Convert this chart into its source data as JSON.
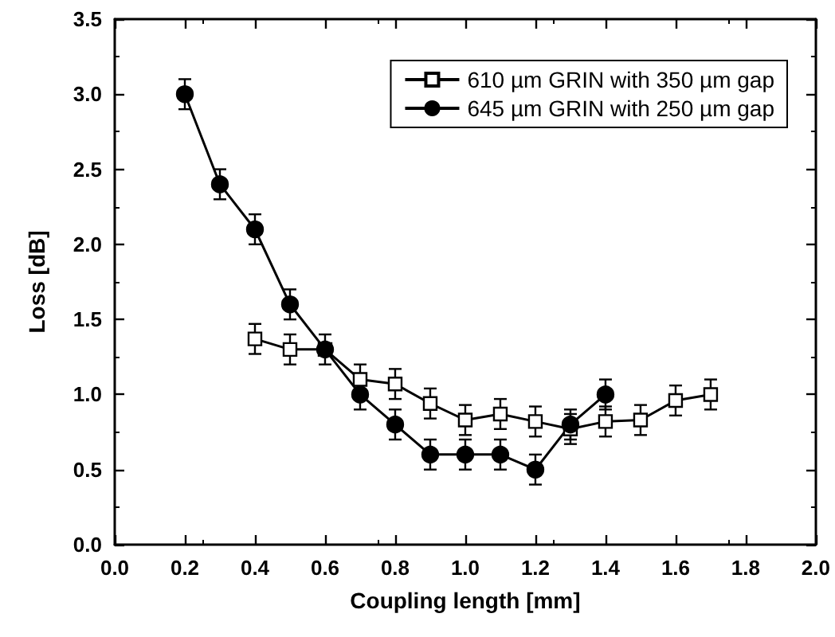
{
  "chart_data": {
    "type": "line",
    "xlabel": "Coupling length [mm]",
    "ylabel": "Loss [dB]",
    "xlim": [
      0,
      2
    ],
    "ylim": [
      0,
      3.5
    ],
    "xticks": [
      {
        "value": 0,
        "label": "0.0"
      },
      {
        "value": 0.2,
        "label": "0.2"
      },
      {
        "value": 0.4,
        "label": "0.4"
      },
      {
        "value": 0.6,
        "label": "0.6"
      },
      {
        "value": 0.8,
        "label": "0.8"
      },
      {
        "value": 1,
        "label": "1.0"
      },
      {
        "value": 1.2,
        "label": "1.2"
      },
      {
        "value": 1.4,
        "label": "1.4"
      },
      {
        "value": 1.6,
        "label": "1.6"
      },
      {
        "value": 1.8,
        "label": "1.8"
      },
      {
        "value": 2,
        "label": "2.0"
      }
    ],
    "yticks": [
      {
        "value": 0,
        "label": "0.0"
      },
      {
        "value": 0.5,
        "label": "0.5"
      },
      {
        "value": 1,
        "label": "1.0"
      },
      {
        "value": 1.5,
        "label": "1.5"
      },
      {
        "value": 2,
        "label": "2.0"
      },
      {
        "value": 2.5,
        "label": "2.5"
      },
      {
        "value": 3,
        "label": "3.0"
      },
      {
        "value": 3.5,
        "label": "3.5"
      }
    ],
    "grid": false,
    "legend": "top right",
    "line_style": "solid",
    "series": [
      {
        "name": "610 µm GRIN with 350 µm gap",
        "color": "#000000",
        "marker": "square",
        "x": [
          0.4,
          0.5,
          0.6,
          0.7,
          0.8,
          0.9,
          1.0,
          1.1,
          1.2,
          1.3,
          1.4,
          1.5,
          1.6,
          1.7
        ],
        "values": [
          1.37,
          1.3,
          1.3,
          1.1,
          1.07,
          0.94,
          0.83,
          0.87,
          0.82,
          0.77,
          0.82,
          0.83,
          0.96,
          1.0
        ],
        "errors": [
          0.1,
          0.1,
          0.1,
          0.1,
          0.1,
          0.1,
          0.1,
          0.1,
          0.1,
          0.1,
          0.1,
          0.1,
          0.1,
          0.1
        ]
      },
      {
        "name": "645 µm GRIN with 250 µm gap",
        "color": "#000000",
        "marker": "circle",
        "x": [
          0.2,
          0.3,
          0.4,
          0.5,
          0.6,
          0.7,
          0.8,
          0.9,
          1.0,
          1.1,
          1.2,
          1.3,
          1.4
        ],
        "values": [
          3.0,
          2.4,
          2.1,
          1.6,
          1.3,
          1.0,
          0.8,
          0.6,
          0.6,
          0.6,
          0.5,
          0.8,
          1.0
        ],
        "errors": [
          0.1,
          0.1,
          0.1,
          0.1,
          0.1,
          0.1,
          0.1,
          0.1,
          0.1,
          0.1,
          0.1,
          0.1,
          0.1
        ]
      }
    ]
  }
}
